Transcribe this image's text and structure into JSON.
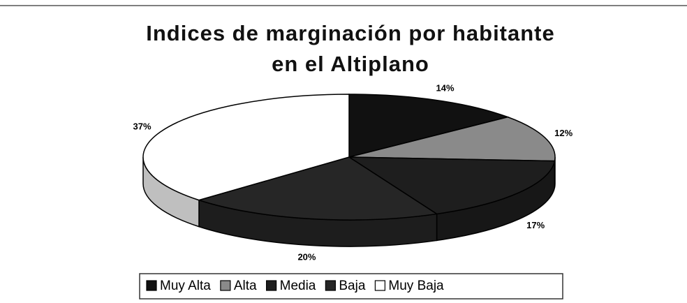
{
  "chart_data": {
    "type": "pie",
    "title": "Indices de marginación por habitante en el Altiplano",
    "categories": [
      "Muy Alta",
      "Alta",
      "Media",
      "Baja",
      "Muy Baja"
    ],
    "values": [
      14,
      12,
      17,
      20,
      37
    ],
    "value_labels": [
      "14%",
      "12%",
      "17%",
      "20%",
      "37%"
    ],
    "colors": [
      "#111111",
      "#8a8a8a",
      "#1e1e1e",
      "#262626",
      "#ffffff"
    ],
    "legend": "bottom"
  }
}
